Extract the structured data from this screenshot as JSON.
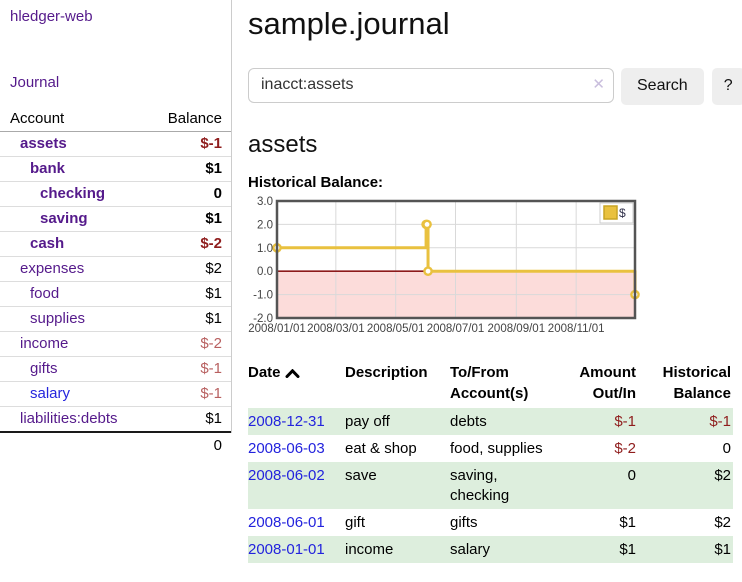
{
  "brand": "hledger-web",
  "nav": {
    "journal_label": "Journal"
  },
  "sidebar_table": {
    "account_header": "Account",
    "balance_header": "Balance",
    "rows": [
      {
        "name": "assets",
        "balance": "$-1",
        "depth": 1,
        "bold": true,
        "link_color": "purple"
      },
      {
        "name": "bank",
        "balance": "$1",
        "depth": 2,
        "bold": true,
        "link_color": "purple"
      },
      {
        "name": "checking",
        "balance": "0",
        "depth": 3,
        "bold": true,
        "link_color": "purple"
      },
      {
        "name": "saving",
        "balance": "$1",
        "depth": 3,
        "bold": true,
        "link_color": "purple"
      },
      {
        "name": "cash",
        "balance": "$-2",
        "depth": 2,
        "bold": true,
        "link_color": "purple"
      },
      {
        "name": "expenses",
        "balance": "$2",
        "depth": 1,
        "bold": false,
        "link_color": "purple"
      },
      {
        "name": "food",
        "balance": "$1",
        "depth": 2,
        "bold": false,
        "link_color": "purple"
      },
      {
        "name": "supplies",
        "balance": "$1",
        "depth": 2,
        "bold": false,
        "link_color": "purple"
      },
      {
        "name": "income",
        "balance": "$-2",
        "depth": 1,
        "bold": false,
        "link_color": "purple"
      },
      {
        "name": "gifts",
        "balance": "$-1",
        "depth": 2,
        "bold": false,
        "link_color": "purple"
      },
      {
        "name": "salary",
        "balance": "$-1",
        "depth": 2,
        "bold": false,
        "link_color": "blue"
      },
      {
        "name": "liabilities:debts",
        "balance": "$1",
        "depth": 1,
        "bold": false,
        "link_color": "purple"
      }
    ],
    "total": "0"
  },
  "header": {
    "title": "sample.journal"
  },
  "search": {
    "value": "inacct:assets",
    "clear_icon": "✕",
    "button_label": "Search",
    "help_label": "?"
  },
  "account_page": {
    "heading": "assets",
    "chart_label": "Historical Balance:"
  },
  "chart_data": {
    "type": "line",
    "style": "steps",
    "title": "Historical Balance",
    "series": [
      {
        "name": "$",
        "x": [
          "2008-01-01",
          "2008-06-01",
          "2008-06-02",
          "2008-06-03",
          "2008-12-31"
        ],
        "y": [
          1,
          2,
          2,
          0,
          -1
        ]
      }
    ],
    "xlim": [
      "2008-01-01",
      "2008-12-31"
    ],
    "ylim": [
      -2,
      3
    ],
    "y_ticks": [
      {
        "value": 3,
        "label": "3.0"
      },
      {
        "value": 2,
        "label": "2.0"
      },
      {
        "value": 1,
        "label": "1.0"
      },
      {
        "value": 0,
        "label": "0.0"
      },
      {
        "value": -1,
        "label": "-1.0"
      },
      {
        "value": -2,
        "label": "-2.0"
      }
    ],
    "x_ticks": [
      {
        "date": "2008-01-01",
        "label": "2008/01/01"
      },
      {
        "date": "2008-03-01",
        "label": "2008/03/01"
      },
      {
        "date": "2008-05-01",
        "label": "2008/05/01"
      },
      {
        "date": "2008-07-01",
        "label": "2008/07/01"
      },
      {
        "date": "2008-09-01",
        "label": "2008/09/01"
      },
      {
        "date": "2008-11-01",
        "label": "2008/11/01"
      }
    ],
    "legend": {
      "label": "$",
      "position": "top-right"
    },
    "colors": {
      "line": "#e9c13f",
      "marker_fill": "#ffffff",
      "negative_region": "#fcdcda",
      "zero_line": "#8d1a1a",
      "grid": "#d9d9d9",
      "border": "#545454"
    },
    "grid": true
  },
  "register_table": {
    "headers": {
      "date": "Date",
      "description": "Description",
      "tofrom": "To/From Account(s)",
      "amount": "Amount Out/In",
      "balance": "Historical Balance"
    },
    "rows": [
      {
        "date": "2008-12-31",
        "description": "pay off",
        "accounts": "debts",
        "amount": "$-1",
        "balance": "$-1"
      },
      {
        "date": "2008-06-03",
        "description": "eat & shop",
        "accounts": "food, supplies",
        "amount": "$-2",
        "balance": "0"
      },
      {
        "date": "2008-06-02",
        "description": "save",
        "accounts": "saving, checking",
        "amount": "0",
        "balance": "$2"
      },
      {
        "date": "2008-06-01",
        "description": "gift",
        "accounts": "gifts",
        "amount": "$1",
        "balance": "$2"
      },
      {
        "date": "2008-01-01",
        "description": "income",
        "accounts": "salary",
        "amount": "$1",
        "balance": "$1"
      }
    ]
  }
}
